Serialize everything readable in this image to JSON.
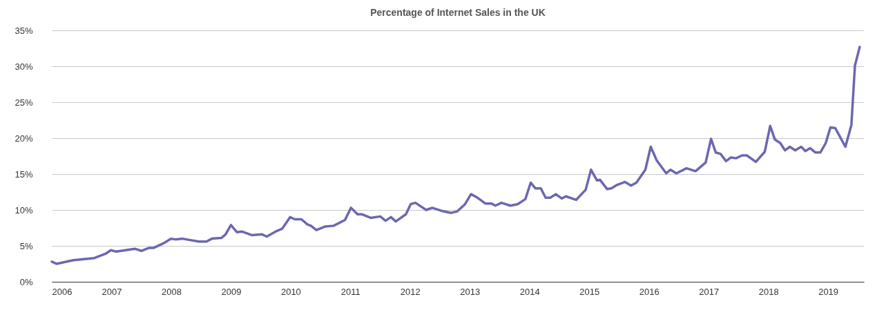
{
  "chart_data": {
    "type": "line",
    "title": "Percentage of Internet Sales in the UK",
    "x": [
      2006.0,
      2006.08,
      2006.36,
      2006.71,
      2006.9,
      2006.99,
      2007.08,
      2007.39,
      2007.5,
      2007.62,
      2007.7,
      2007.88,
      2008.0,
      2008.07,
      2008.19,
      2008.46,
      2008.59,
      2008.68,
      2008.84,
      2008.91,
      2009.0,
      2009.1,
      2009.18,
      2009.35,
      2009.52,
      2009.6,
      2009.75,
      2009.86,
      2009.99,
      2010.07,
      2010.18,
      2010.28,
      2010.34,
      2010.43,
      2010.58,
      2010.72,
      2010.91,
      2011.01,
      2011.12,
      2011.19,
      2011.34,
      2011.5,
      2011.59,
      2011.68,
      2011.76,
      2011.93,
      2012.01,
      2012.09,
      2012.27,
      2012.37,
      2012.56,
      2012.69,
      2012.79,
      2012.92,
      2013.02,
      2013.13,
      2013.26,
      2013.36,
      2013.43,
      2013.53,
      2013.68,
      2013.8,
      2013.93,
      2014.02,
      2014.1,
      2014.19,
      2014.27,
      2014.35,
      2014.44,
      2014.54,
      2014.61,
      2014.78,
      2014.94,
      2015.03,
      2015.13,
      2015.18,
      2015.3,
      2015.37,
      2015.47,
      2015.6,
      2015.7,
      2015.79,
      2015.94,
      2016.03,
      2016.13,
      2016.29,
      2016.36,
      2016.46,
      2016.63,
      2016.78,
      2016.95,
      2017.04,
      2017.12,
      2017.2,
      2017.29,
      2017.37,
      2017.46,
      2017.56,
      2017.64,
      2017.79,
      2017.94,
      2018.03,
      2018.11,
      2018.2,
      2018.28,
      2018.36,
      2018.45,
      2018.55,
      2018.62,
      2018.7,
      2018.79,
      2018.87,
      2018.96,
      2019.04,
      2019.12,
      2019.29,
      2019.39,
      2019.45,
      2019.53
    ],
    "series": [
      {
        "color": "#6b67b0",
        "values": [
          2.8,
          2.5,
          3.0,
          3.3,
          3.9,
          4.4,
          4.2,
          4.6,
          4.3,
          4.7,
          4.7,
          5.4,
          6.0,
          5.9,
          6.0,
          5.6,
          5.6,
          6.0,
          6.1,
          6.6,
          7.9,
          6.9,
          7.0,
          6.5,
          6.6,
          6.3,
          7.0,
          7.4,
          9.0,
          8.7,
          8.7,
          8.0,
          7.8,
          7.2,
          7.7,
          7.8,
          8.6,
          10.3,
          9.4,
          9.4,
          8.9,
          9.1,
          8.5,
          9.0,
          8.4,
          9.4,
          10.8,
          11.0,
          10.0,
          10.3,
          9.8,
          9.6,
          9.8,
          10.8,
          12.2,
          11.7,
          10.9,
          10.9,
          10.6,
          11.0,
          10.6,
          10.8,
          11.5,
          13.8,
          13.0,
          13.0,
          11.7,
          11.7,
          12.2,
          11.6,
          11.9,
          11.4,
          12.8,
          15.6,
          14.1,
          14.2,
          12.9,
          13.0,
          13.5,
          13.9,
          13.4,
          13.8,
          15.6,
          18.8,
          16.9,
          15.1,
          15.6,
          15.1,
          15.8,
          15.4,
          16.6,
          19.9,
          18.0,
          17.8,
          16.8,
          17.3,
          17.2,
          17.6,
          17.6,
          16.7,
          18.1,
          21.7,
          19.8,
          19.3,
          18.3,
          18.8,
          18.3,
          18.8,
          18.2,
          18.6,
          18.0,
          18.0,
          19.3,
          21.5,
          21.4,
          18.8,
          21.8,
          30.1,
          32.7
        ]
      }
    ],
    "xlim": [
      2006,
      2019.6
    ],
    "xticks": [
      2006,
      2007,
      2008,
      2009,
      2010,
      2011,
      2012,
      2013,
      2014,
      2015,
      2016,
      2017,
      2018,
      2019
    ],
    "ylim": [
      0,
      35
    ],
    "yticks": [
      {
        "value": 0,
        "label": "0%"
      },
      {
        "value": 5,
        "label": "5%"
      },
      {
        "value": 10,
        "label": "10%"
      },
      {
        "value": 15,
        "label": "15%"
      },
      {
        "value": 20,
        "label": "20%"
      },
      {
        "value": 25,
        "label": "25%"
      },
      {
        "value": 30,
        "label": "30%"
      },
      {
        "value": 35,
        "label": "35%"
      }
    ],
    "grid": "y",
    "marker": "none",
    "line_style": "solid"
  }
}
